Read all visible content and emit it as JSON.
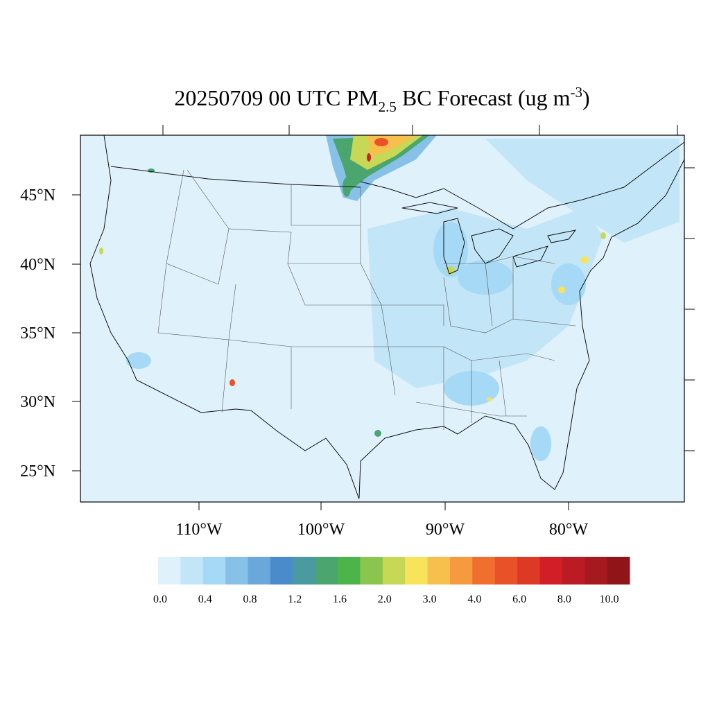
{
  "title": {
    "prefix": "20250709 00 UTC PM",
    "sub": "2.5",
    "middle": " BC Forecast (ug m",
    "sup": "-3",
    "suffix": ")"
  },
  "map": {
    "lat_labels": [
      "45°N",
      "40°N",
      "35°N",
      "30°N",
      "25°N"
    ],
    "lon_labels": [
      "110°W",
      "100°W",
      "90°W",
      "80°W"
    ]
  },
  "colorbar": {
    "colors": [
      "#dff1fb",
      "#c2e5f7",
      "#a6d9f5",
      "#88c1e8",
      "#6aa8db",
      "#4a8ccb",
      "#4a9aa0",
      "#4aa66e",
      "#4bb54a",
      "#8bc54e",
      "#c6d856",
      "#f7e45a",
      "#f7bf4c",
      "#f59a3e",
      "#f06e2e",
      "#e95228",
      "#dd3a25",
      "#d21f27",
      "#bb1b24",
      "#a6191f",
      "#8f1519"
    ],
    "labels": [
      "0.0",
      "0.4",
      "0.8",
      "1.2",
      "1.6",
      "2.0",
      "3.0",
      "4.0",
      "6.0",
      "8.0",
      "10.0"
    ]
  }
}
